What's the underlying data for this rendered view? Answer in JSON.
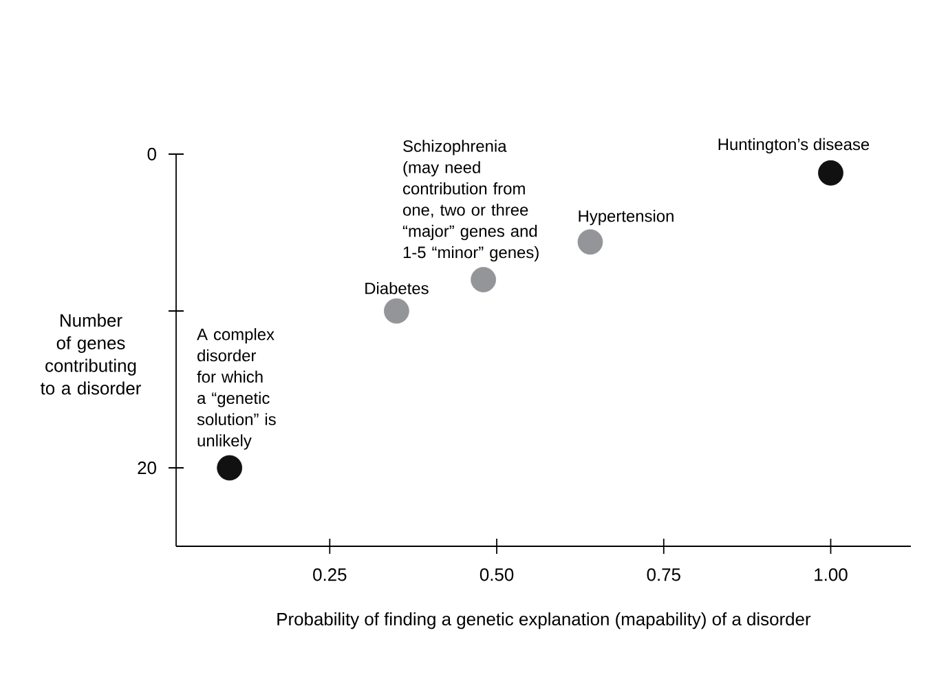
{
  "chart_data": {
    "type": "scatter",
    "xlabel": "Probability of finding a genetic explanation (mapability) of a disorder",
    "ylabel": "Number of genes contributing to a disorder",
    "x": [
      0.1,
      0.35,
      0.48,
      0.64,
      1.0
    ],
    "values": [
      20,
      10,
      8,
      5.6,
      1.2
    ],
    "colors": [
      "#111111",
      "#939598",
      "#939598",
      "#939598",
      "#111111"
    ],
    "marker": "circle",
    "xlim": [
      0.02,
      1.12
    ],
    "ylim": [
      25,
      0
    ],
    "xticks": [
      0.25,
      {
        "value": 0.5,
        "label": "0.50"
      },
      0.75,
      {
        "value": 1.0,
        "label": "1.00"
      }
    ],
    "yticks": [
      0,
      {
        "value": 10,
        "label": null
      },
      20
    ],
    "grid": false,
    "annotations": [
      {
        "text": "A complex disorder for which a “genetic solution” is unlikely",
        "x": 0.1,
        "y": 20
      },
      {
        "text": "Diabetes",
        "x": 0.35,
        "y": 10
      },
      {
        "text": "Schizophrenia (may need contribution from one, two or three “major” genes and 1-5 “minor” genes)",
        "x": 0.48,
        "y": 8
      },
      {
        "text": "Hypertension",
        "x": 0.64,
        "y": 5.6
      },
      {
        "text": "Huntington’s disease",
        "x": 1.0,
        "y": 1.2
      }
    ]
  }
}
